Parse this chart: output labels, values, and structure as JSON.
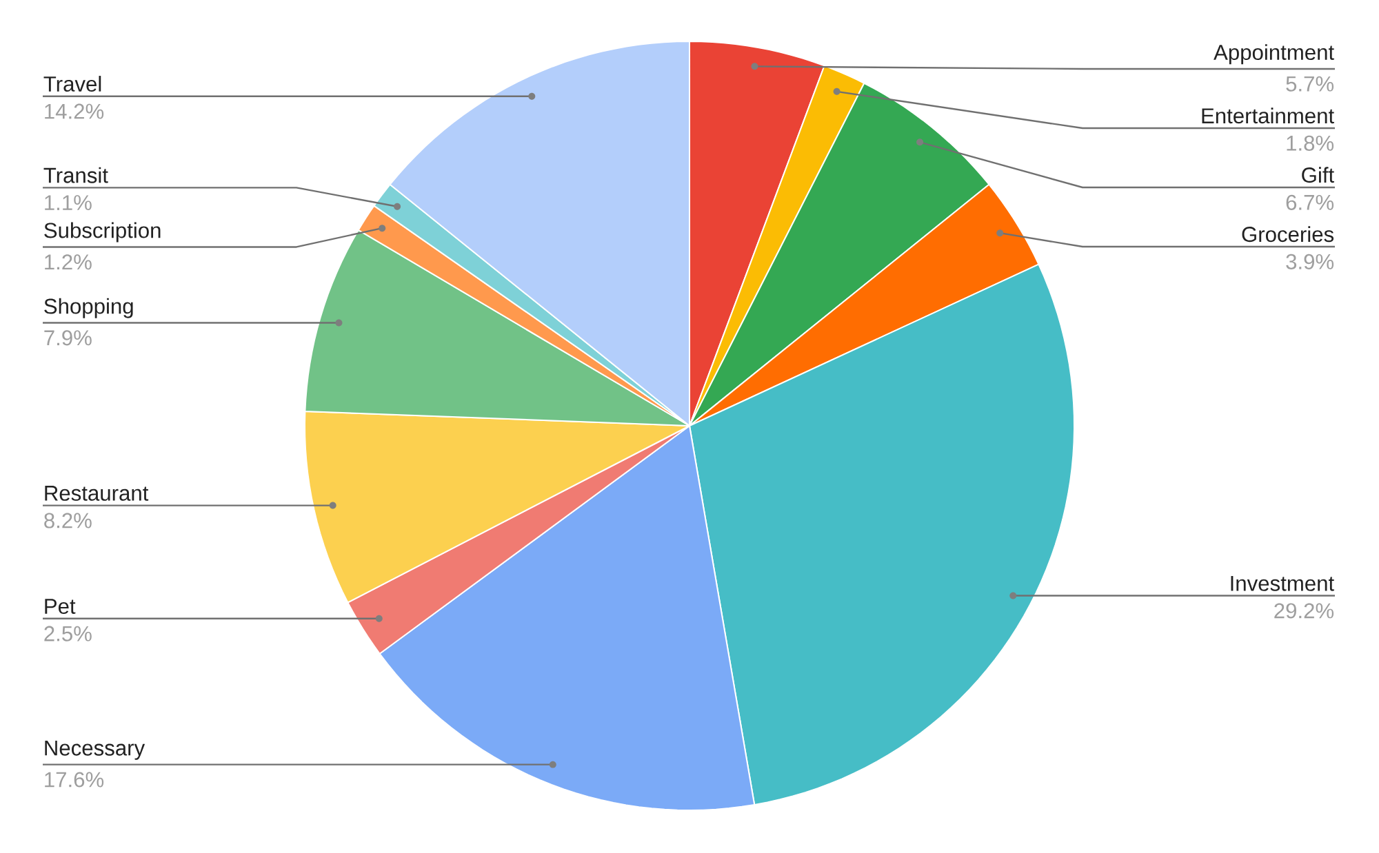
{
  "chart_data": {
    "type": "pie",
    "categories": [
      "Appointment",
      "Entertainment",
      "Gift",
      "Groceries",
      "Investment",
      "Necessary",
      "Pet",
      "Restaurant",
      "Shopping",
      "Subscription",
      "Transit",
      "Travel"
    ],
    "values": [
      5.7,
      1.8,
      6.7,
      3.9,
      29.2,
      17.6,
      2.5,
      8.2,
      7.9,
      1.2,
      1.1,
      14.2
    ],
    "colors": [
      "#ea4335",
      "#fbbc04",
      "#34a853",
      "#ff6d01",
      "#46bdc6",
      "#7baaf7",
      "#f07b72",
      "#fcd04f",
      "#71c287",
      "#ff994d",
      "#7ed1d7",
      "#b3cefb"
    ],
    "value_labels": [
      "5.7%",
      "1.8%",
      "6.7%",
      "3.9%",
      "29.2%",
      "17.6%",
      "2.5%",
      "8.2%",
      "7.9%",
      "1.2%",
      "1.1%",
      "14.2%"
    ]
  }
}
